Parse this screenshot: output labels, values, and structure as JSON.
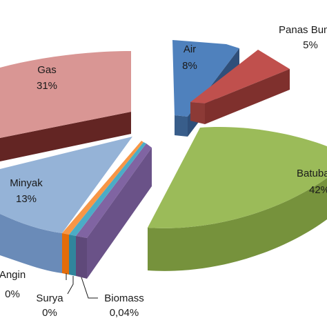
{
  "chart_data": {
    "type": "pie",
    "exploded": true,
    "three_d": true,
    "legend": "none",
    "slices": [
      {
        "name": "Air",
        "value_label": "8%",
        "value": 8,
        "color": "#4f81bd"
      },
      {
        "name": "Panas Bumi",
        "value_label": "5%",
        "value": 5,
        "color": "#c0504d"
      },
      {
        "name": "Batubara",
        "value_label": "42%",
        "value": 42,
        "color": "#9bbb59"
      },
      {
        "name": "Biomass",
        "value_label": "0,04%",
        "value": 0.04,
        "color": "#8064a2"
      },
      {
        "name": "Surya",
        "value_label": "0%",
        "value": 0,
        "color": "#4bacc6"
      },
      {
        "name": "Angin",
        "value_label": "0%",
        "value": 0,
        "color": "#f79646"
      },
      {
        "name": "Minyak",
        "value_label": "13%",
        "value": 13,
        "color": "#95b3d7"
      },
      {
        "name": "Gas",
        "value_label": "31%",
        "value": 31,
        "color": "#d99694"
      }
    ]
  }
}
